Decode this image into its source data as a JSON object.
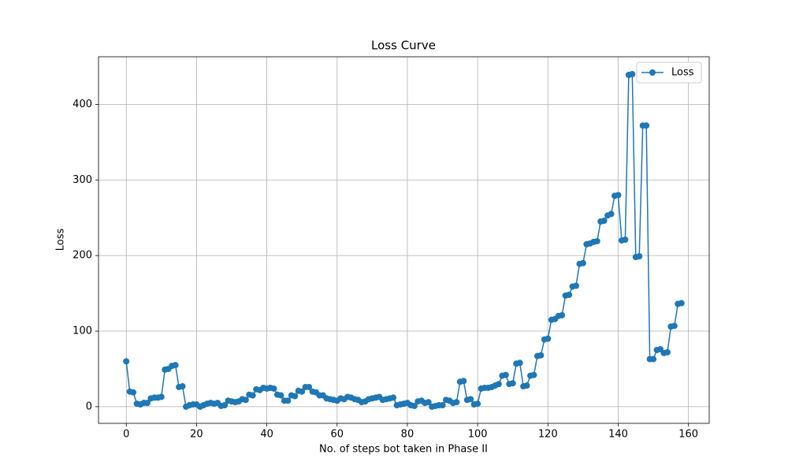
{
  "chart_data": {
    "type": "line",
    "title": "Loss Curve",
    "x_label": "No. of steps bot taken in Phase II",
    "y_label": "Loss",
    "x": [
      0,
      1,
      2,
      3,
      4,
      5,
      6,
      7,
      8,
      9,
      10,
      11,
      12,
      13,
      14,
      15,
      16,
      17,
      18,
      19,
      20,
      21,
      22,
      23,
      24,
      25,
      26,
      27,
      28,
      29,
      30,
      31,
      32,
      33,
      34,
      35,
      36,
      37,
      38,
      39,
      40,
      41,
      42,
      43,
      44,
      45,
      46,
      47,
      48,
      49,
      50,
      51,
      52,
      53,
      54,
      55,
      56,
      57,
      58,
      59,
      60,
      61,
      62,
      63,
      64,
      65,
      66,
      67,
      68,
      69,
      70,
      71,
      72,
      73,
      74,
      75,
      76,
      77,
      78,
      79,
      80,
      81,
      82,
      83,
      84,
      85,
      86,
      87,
      88,
      89,
      90,
      91,
      92,
      93,
      94,
      95,
      96,
      97,
      98,
      99,
      100,
      101,
      102,
      103,
      104,
      105,
      106,
      107,
      108,
      109,
      110,
      111,
      112,
      113,
      114,
      115,
      116,
      117,
      118,
      119,
      120,
      121,
      122,
      123,
      124,
      125,
      126,
      127,
      128,
      129,
      130,
      131,
      132,
      133,
      134,
      135,
      136,
      137,
      138,
      139,
      140,
      141,
      142,
      143,
      144,
      145,
      146,
      147,
      148,
      149,
      150,
      151,
      152,
      153,
      154,
      155,
      156,
      157,
      158
    ],
    "series": [
      {
        "name": "Loss",
        "color": "#1f77b4",
        "values": [
          60,
          20,
          19,
          4,
          3,
          5,
          5,
          11,
          12,
          12,
          13,
          49,
          50,
          54,
          55,
          26,
          27,
          0,
          2,
          3,
          3,
          0,
          2,
          4,
          5,
          4,
          5,
          1,
          2,
          8,
          7,
          6,
          7,
          10,
          9,
          16,
          15,
          23,
          22,
          25,
          24,
          25,
          24,
          16,
          15,
          8,
          8,
          15,
          14,
          21,
          20,
          26,
          26,
          20,
          19,
          15,
          15,
          11,
          10,
          9,
          8,
          11,
          10,
          13,
          12,
          10,
          9,
          6,
          7,
          10,
          11,
          12,
          13,
          9,
          10,
          11,
          12,
          2,
          3,
          4,
          5,
          2,
          1,
          7,
          8,
          5,
          6,
          0,
          1,
          2,
          2,
          9,
          8,
          5,
          6,
          33,
          34,
          9,
          10,
          3,
          4,
          24,
          25,
          25,
          26,
          28,
          30,
          41,
          42,
          30,
          31,
          57,
          58,
          27,
          28,
          41,
          42,
          67,
          68,
          89,
          90,
          115,
          116,
          120,
          121,
          147,
          148,
          159,
          160,
          189,
          190,
          215,
          216,
          218,
          219,
          245,
          246,
          253,
          255,
          279,
          280,
          220,
          221,
          439,
          440,
          198,
          199,
          372,
          372,
          63,
          63,
          75,
          76,
          71,
          72,
          106,
          107,
          136,
          137
        ]
      }
    ],
    "xlim": [
      -7.9,
      165.9
    ],
    "ylim": [
      -22,
      463
    ],
    "xticks": [
      0,
      20,
      40,
      60,
      80,
      100,
      120,
      140,
      160
    ],
    "yticks": [
      0,
      100,
      200,
      300,
      400
    ],
    "grid": true,
    "legend": "upper right"
  }
}
